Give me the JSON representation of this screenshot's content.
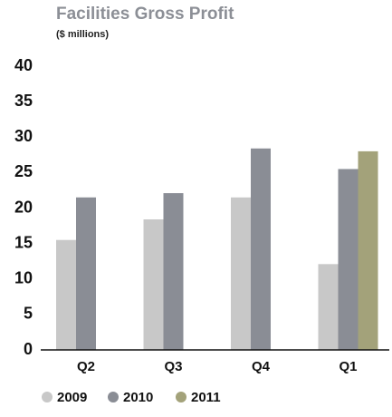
{
  "chart_data": {
    "type": "bar",
    "title": "Facilities Gross Profit",
    "subtitle": "($ millions)",
    "categories": [
      "Q2",
      "Q3",
      "Q4",
      "Q1"
    ],
    "series": [
      {
        "name": "2009",
        "color": "#c8c8c8",
        "values": [
          15.5,
          18.4,
          21.5,
          12.1
        ]
      },
      {
        "name": "2010",
        "color": "#8a8d95",
        "values": [
          21.5,
          22.1,
          28.4,
          25.5
        ]
      },
      {
        "name": "2011",
        "color": "#a3a27a",
        "values": [
          null,
          null,
          null,
          28.0
        ]
      }
    ],
    "ylim": [
      0,
      40
    ],
    "yticks": [
      0,
      5,
      10,
      15,
      20,
      25,
      30,
      35,
      40
    ],
    "grid": false
  }
}
